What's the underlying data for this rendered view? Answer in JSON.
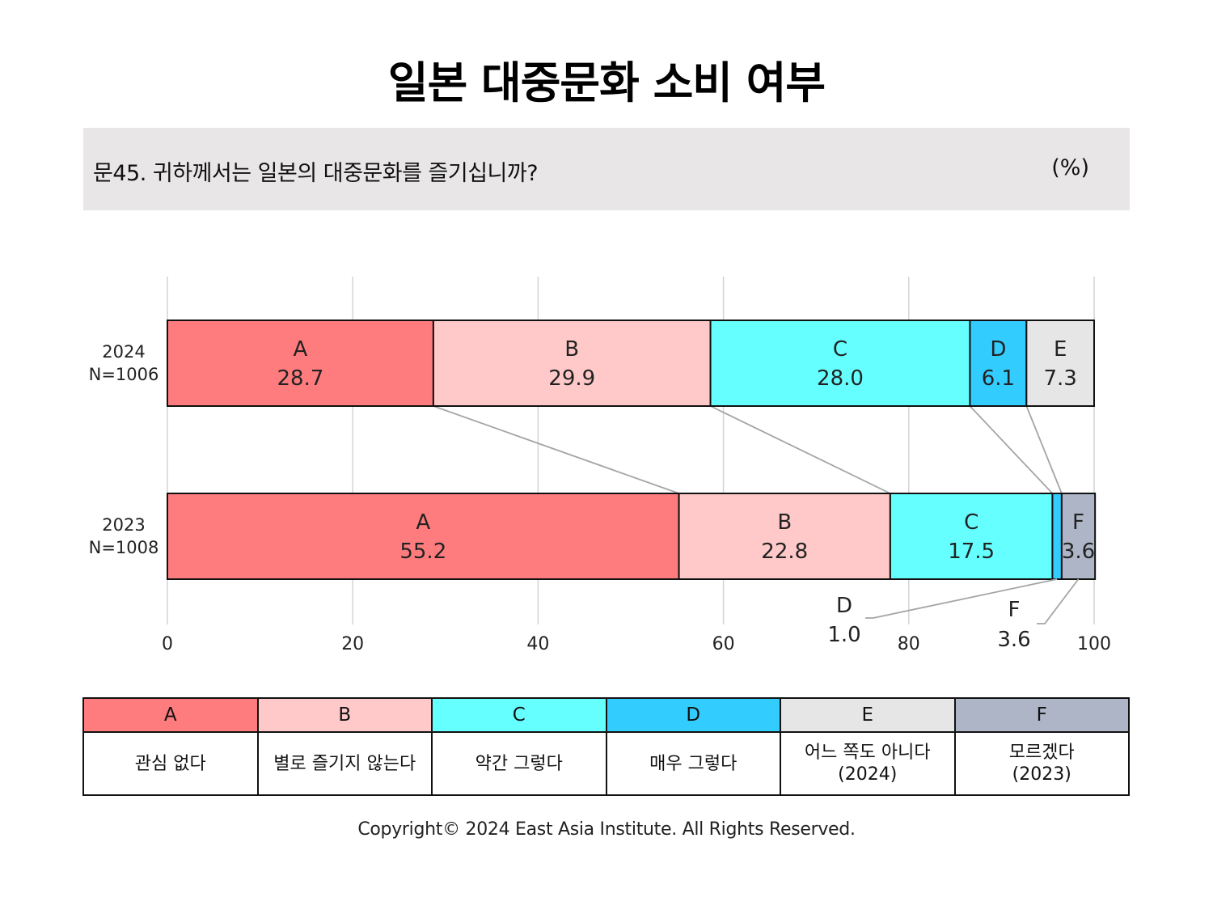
{
  "title": "일본 대중문화 소비 여부",
  "question": "문45. 귀하께서는 일본의 대중문화를 즐기십니까?",
  "unit": "(%)",
  "chart_data": {
    "type": "bar",
    "stacked": true,
    "orientation": "horizontal",
    "xlim": [
      0,
      100
    ],
    "xticks": [
      0,
      20,
      40,
      60,
      80,
      100
    ],
    "grid": true,
    "rows": [
      {
        "year": "2024",
        "n": "N=1006",
        "segments": [
          {
            "key": "A",
            "value": 28.7,
            "label": "28.7"
          },
          {
            "key": "B",
            "value": 29.9,
            "label": "29.9"
          },
          {
            "key": "C",
            "value": 28.0,
            "label": "28.0"
          },
          {
            "key": "D",
            "value": 6.1,
            "label": "6.1"
          },
          {
            "key": "E",
            "value": 7.3,
            "label": "7.3"
          }
        ]
      },
      {
        "year": "2023",
        "n": "N=1008",
        "segments": [
          {
            "key": "A",
            "value": 55.2,
            "label": "55.2"
          },
          {
            "key": "B",
            "value": 22.8,
            "label": "22.8"
          },
          {
            "key": "C",
            "value": 17.5,
            "label": "17.5"
          },
          {
            "key": "D",
            "value": 1.0,
            "label": "1.0"
          },
          {
            "key": "F",
            "value": 3.6,
            "label": "3.6"
          }
        ]
      }
    ],
    "colors": {
      "A": "#ff7c7e",
      "B": "#ffc9c9",
      "C": "#66ffff",
      "D": "#33ccff",
      "E": "#e7e6e6",
      "F": "#adb5c7"
    }
  },
  "legend": [
    {
      "key": "A",
      "lines": [
        "관심 없다"
      ]
    },
    {
      "key": "B",
      "lines": [
        "별로 즐기지 않는다"
      ]
    },
    {
      "key": "C",
      "lines": [
        "약간 그렇다"
      ]
    },
    {
      "key": "D",
      "lines": [
        "매우 그렇다"
      ]
    },
    {
      "key": "E",
      "lines": [
        "어느 쪽도 아니다",
        "(2024)"
      ]
    },
    {
      "key": "F",
      "lines": [
        "모르겠다",
        "(2023)"
      ]
    }
  ],
  "copyright": "Copyright© 2024 East Asia Institute. All Rights Reserved."
}
